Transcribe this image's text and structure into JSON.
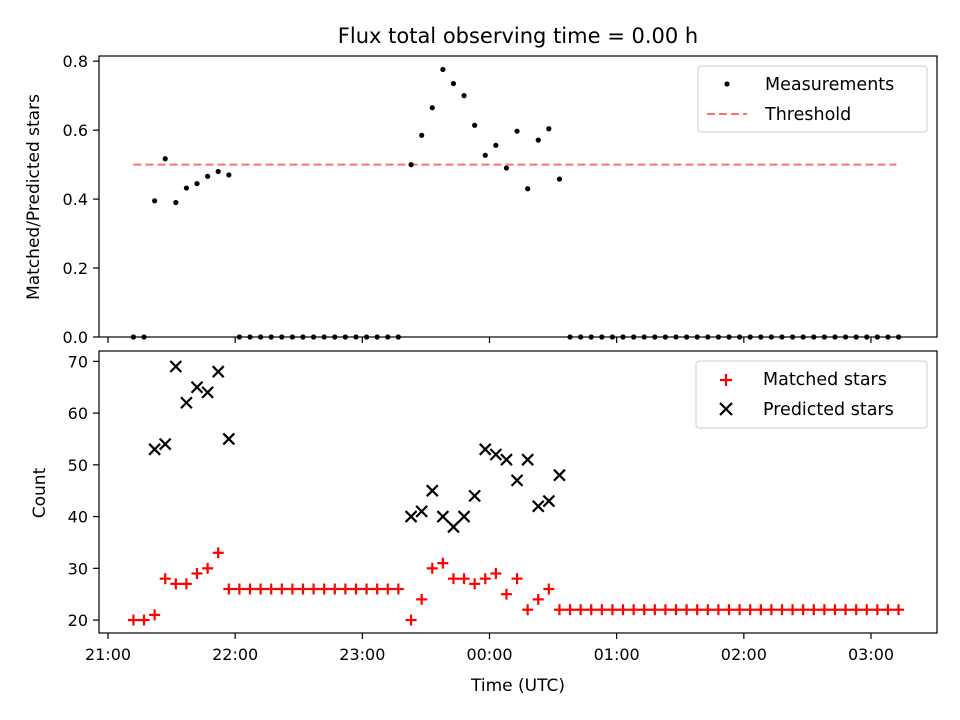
{
  "title": "Flux total observing time = 0.00 h",
  "chart_data": [
    {
      "type": "scatter",
      "panel": "top",
      "title": "Flux total observing time = 0.00 h",
      "xlabel": "",
      "ylabel": "Matched/Predicted stars",
      "ylim": [
        0,
        0.815
      ],
      "yticks": [
        0.0,
        0.2,
        0.4,
        0.6,
        0.8
      ],
      "ytick_labels": [
        "0.0",
        "0.2",
        "0.4",
        "0.6",
        "0.8"
      ],
      "legend_position": "top-right",
      "colors": {
        "measurements": "#000000",
        "threshold": "#ff7070"
      },
      "series": [
        {
          "name": "Measurements",
          "marker": "dot",
          "points": [
            [
              "21:12",
              0.0
            ],
            [
              "21:17",
              0.0
            ],
            [
              "21:22",
              0.395
            ],
            [
              "21:27",
              0.517
            ],
            [
              "21:32",
              0.39
            ],
            [
              "21:37",
              0.432
            ],
            [
              "21:42",
              0.445
            ],
            [
              "21:47",
              0.466
            ],
            [
              "21:52",
              0.48
            ],
            [
              "21:57",
              0.47
            ],
            [
              "22:02",
              0.0
            ],
            [
              "22:07",
              0.0
            ],
            [
              "22:12",
              0.0
            ],
            [
              "22:17",
              0.0
            ],
            [
              "22:22",
              0.0
            ],
            [
              "22:27",
              0.0
            ],
            [
              "22:32",
              0.0
            ],
            [
              "22:37",
              0.0
            ],
            [
              "22:42",
              0.0
            ],
            [
              "22:47",
              0.0
            ],
            [
              "22:52",
              0.0
            ],
            [
              "22:57",
              0.0
            ],
            [
              "23:02",
              0.0
            ],
            [
              "23:07",
              0.0
            ],
            [
              "23:12",
              0.0
            ],
            [
              "23:17",
              0.0
            ],
            [
              "23:23",
              0.5
            ],
            [
              "23:28",
              0.585
            ],
            [
              "23:33",
              0.665
            ],
            [
              "23:38",
              0.776
            ],
            [
              "23:43",
              0.735
            ],
            [
              "23:48",
              0.7
            ],
            [
              "23:53",
              0.614
            ],
            [
              "23:58",
              0.527
            ],
            [
              "00:03",
              0.556
            ],
            [
              "00:08",
              0.49
            ],
            [
              "00:13",
              0.597
            ],
            [
              "00:18",
              0.43
            ],
            [
              "00:23",
              0.571
            ],
            [
              "00:28",
              0.604
            ],
            [
              "00:33",
              0.458
            ],
            [
              "00:38",
              0.0
            ],
            [
              "00:43",
              0.0
            ],
            [
              "00:48",
              0.0
            ],
            [
              "00:53",
              0.0
            ],
            [
              "00:58",
              0.0
            ],
            [
              "01:03",
              0.0
            ],
            [
              "01:08",
              0.0
            ],
            [
              "01:13",
              0.0
            ],
            [
              "01:18",
              0.0
            ],
            [
              "01:23",
              0.0
            ],
            [
              "01:28",
              0.0
            ],
            [
              "01:33",
              0.0
            ],
            [
              "01:38",
              0.0
            ],
            [
              "01:43",
              0.0
            ],
            [
              "01:48",
              0.0
            ],
            [
              "01:53",
              0.0
            ],
            [
              "01:58",
              0.0
            ],
            [
              "02:03",
              0.0
            ],
            [
              "02:08",
              0.0
            ],
            [
              "02:13",
              0.0
            ],
            [
              "02:18",
              0.0
            ],
            [
              "02:23",
              0.0
            ],
            [
              "02:28",
              0.0
            ],
            [
              "02:33",
              0.0
            ],
            [
              "02:38",
              0.0
            ],
            [
              "02:43",
              0.0
            ],
            [
              "02:48",
              0.0
            ],
            [
              "02:53",
              0.0
            ],
            [
              "02:58",
              0.0
            ],
            [
              "03:03",
              0.0
            ],
            [
              "03:08",
              0.0
            ],
            [
              "03:13",
              0.0
            ]
          ]
        },
        {
          "name": "Threshold",
          "marker": "dashed-line",
          "points": [
            [
              "21:12",
              0.5
            ],
            [
              "03:12",
              0.5
            ]
          ]
        }
      ]
    },
    {
      "type": "scatter",
      "panel": "bottom",
      "xlabel": "Time (UTC)",
      "ylabel": "Count",
      "ylim": [
        17.5,
        72
      ],
      "yticks": [
        20,
        30,
        40,
        50,
        60,
        70
      ],
      "ytick_labels": [
        "20",
        "30",
        "40",
        "50",
        "60",
        "70"
      ],
      "xticks": [
        "21:00",
        "22:00",
        "23:00",
        "00:00",
        "01:00",
        "02:00",
        "03:00"
      ],
      "legend_position": "top-right",
      "colors": {
        "matched": "#ff0000",
        "predicted": "#000000"
      },
      "series": [
        {
          "name": "Matched stars",
          "marker": "plus",
          "points": [
            [
              "21:12",
              20
            ],
            [
              "21:17",
              20
            ],
            [
              "21:22",
              21
            ],
            [
              "21:27",
              28
            ],
            [
              "21:32",
              27
            ],
            [
              "21:37",
              27
            ],
            [
              "21:42",
              29
            ],
            [
              "21:47",
              30
            ],
            [
              "21:52",
              33
            ],
            [
              "21:57",
              26
            ],
            [
              "22:02",
              26
            ],
            [
              "22:07",
              26
            ],
            [
              "22:12",
              26
            ],
            [
              "22:17",
              26
            ],
            [
              "22:22",
              26
            ],
            [
              "22:27",
              26
            ],
            [
              "22:32",
              26
            ],
            [
              "22:37",
              26
            ],
            [
              "22:42",
              26
            ],
            [
              "22:47",
              26
            ],
            [
              "22:52",
              26
            ],
            [
              "22:57",
              26
            ],
            [
              "23:02",
              26
            ],
            [
              "23:07",
              26
            ],
            [
              "23:12",
              26
            ],
            [
              "23:17",
              26
            ],
            [
              "23:23",
              20
            ],
            [
              "23:28",
              24
            ],
            [
              "23:33",
              30
            ],
            [
              "23:38",
              31
            ],
            [
              "23:43",
              28
            ],
            [
              "23:48",
              28
            ],
            [
              "23:53",
              27
            ],
            [
              "23:58",
              28
            ],
            [
              "00:03",
              29
            ],
            [
              "00:08",
              25
            ],
            [
              "00:13",
              28
            ],
            [
              "00:18",
              22
            ],
            [
              "00:23",
              24
            ],
            [
              "00:28",
              26
            ],
            [
              "00:33",
              22
            ],
            [
              "00:38",
              22
            ],
            [
              "00:43",
              22
            ],
            [
              "00:48",
              22
            ],
            [
              "00:53",
              22
            ],
            [
              "00:58",
              22
            ],
            [
              "01:03",
              22
            ],
            [
              "01:08",
              22
            ],
            [
              "01:13",
              22
            ],
            [
              "01:18",
              22
            ],
            [
              "01:23",
              22
            ],
            [
              "01:28",
              22
            ],
            [
              "01:33",
              22
            ],
            [
              "01:38",
              22
            ],
            [
              "01:43",
              22
            ],
            [
              "01:48",
              22
            ],
            [
              "01:53",
              22
            ],
            [
              "01:58",
              22
            ],
            [
              "02:03",
              22
            ],
            [
              "02:08",
              22
            ],
            [
              "02:13",
              22
            ],
            [
              "02:18",
              22
            ],
            [
              "02:23",
              22
            ],
            [
              "02:28",
              22
            ],
            [
              "02:33",
              22
            ],
            [
              "02:38",
              22
            ],
            [
              "02:43",
              22
            ],
            [
              "02:48",
              22
            ],
            [
              "02:53",
              22
            ],
            [
              "02:58",
              22
            ],
            [
              "03:03",
              22
            ],
            [
              "03:08",
              22
            ],
            [
              "03:13",
              22
            ]
          ]
        },
        {
          "name": "Predicted stars",
          "marker": "x",
          "points": [
            [
              "21:22",
              53
            ],
            [
              "21:27",
              54
            ],
            [
              "21:32",
              69
            ],
            [
              "21:37",
              62
            ],
            [
              "21:42",
              65
            ],
            [
              "21:47",
              64
            ],
            [
              "21:52",
              68
            ],
            [
              "21:57",
              55
            ],
            [
              "23:23",
              40
            ],
            [
              "23:28",
              41
            ],
            [
              "23:33",
              45
            ],
            [
              "23:38",
              40
            ],
            [
              "23:43",
              38
            ],
            [
              "23:48",
              40
            ],
            [
              "23:53",
              44
            ],
            [
              "23:58",
              53
            ],
            [
              "00:03",
              52
            ],
            [
              "00:08",
              51
            ],
            [
              "00:13",
              47
            ],
            [
              "00:18",
              51
            ],
            [
              "00:23",
              42
            ],
            [
              "00:28",
              43
            ],
            [
              "00:33",
              48
            ]
          ]
        }
      ]
    }
  ]
}
